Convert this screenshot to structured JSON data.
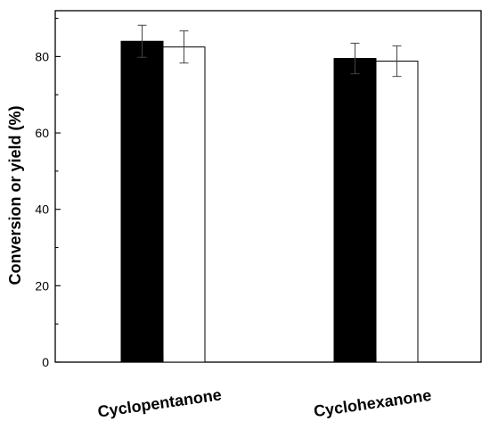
{
  "chart_data": {
    "type": "bar",
    "title": "",
    "xlabel": "",
    "ylabel": "Conversion or yield (%)",
    "categories": [
      "Cyclopentanone",
      "Cyclohexanone"
    ],
    "series": [
      {
        "fill": "#000000",
        "values": [
          84,
          79.5
        ],
        "errors": [
          4.2,
          4.0
        ]
      },
      {
        "fill": "#ffffff",
        "values": [
          82.5,
          78.8
        ],
        "errors": [
          4.2,
          4.0
        ]
      }
    ],
    "ylim": [
      0,
      92
    ],
    "yticks": [
      0,
      20,
      40,
      60,
      80
    ],
    "y_minor_step": 10,
    "grid": false,
    "legend": "none"
  }
}
